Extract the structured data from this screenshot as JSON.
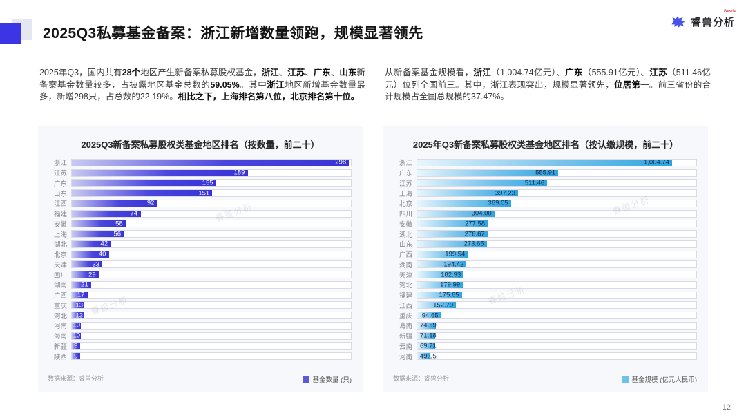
{
  "page": {
    "title": "2025Q3私募基金备案：浙江新增数量领跑，规模显著领先",
    "page_number": "12",
    "watermark": "睿兽分析",
    "logo": {
      "brand": "睿兽分析",
      "brand_en": "Bestla"
    },
    "colors": {
      "accent_blue": "#3b35e6",
      "decor_gray": "#e4e7f0"
    }
  },
  "paragraphs": {
    "left": [
      {
        "t": "2025年Q3，国内共有",
        "b": false
      },
      {
        "t": "28个",
        "b": true
      },
      {
        "t": "地区产生新备案私募股权基金，",
        "b": false
      },
      {
        "t": "浙江",
        "b": true
      },
      {
        "t": "、",
        "b": false
      },
      {
        "t": "江苏",
        "b": true
      },
      {
        "t": "、",
        "b": false
      },
      {
        "t": "广东",
        "b": true
      },
      {
        "t": "、",
        "b": false
      },
      {
        "t": "山东",
        "b": true
      },
      {
        "t": "新备案基金数量较多，占披露地区基金总数的",
        "b": false
      },
      {
        "t": "59.05%",
        "b": true
      },
      {
        "t": "。其中",
        "b": false
      },
      {
        "t": "浙江",
        "b": true
      },
      {
        "t": "地区新增基金数量最多，新增298只，占总数的22.19%。",
        "b": false
      },
      {
        "t": "相比之下，上海排名第八位，北京排名第十位。",
        "b": true
      }
    ],
    "right": [
      {
        "t": "从新备案基金规模看，",
        "b": false
      },
      {
        "t": "浙江",
        "b": true
      },
      {
        "t": "（1,004.74亿元）、",
        "b": false
      },
      {
        "t": "广东",
        "b": true
      },
      {
        "t": "（555.91亿元）、",
        "b": false
      },
      {
        "t": "江苏",
        "b": true
      },
      {
        "t": "（511.46亿元）位列全国前三。其中，浙江表现突出，规模显著领先，",
        "b": false
      },
      {
        "t": "位居第一",
        "b": true
      },
      {
        "t": "。前三省份的合计规模占全国总规模的37.47%。",
        "b": false
      }
    ]
  },
  "chart_data": [
    {
      "type": "bar",
      "orientation": "horizontal",
      "title": "2025Q3新备案私募股权类基金地区排名（按数量，前二十）",
      "categories": [
        "浙江",
        "江苏",
        "广东",
        "山东",
        "江西",
        "福建",
        "安徽",
        "上海",
        "湖北",
        "北京",
        "天津",
        "四川",
        "湖南",
        "广西",
        "重庆",
        "河北",
        "河南",
        "海南",
        "新疆",
        "陕西"
      ],
      "values": [
        298,
        189,
        155,
        151,
        92,
        74,
        58,
        56,
        42,
        40,
        33,
        29,
        21,
        17,
        13,
        13,
        10,
        10,
        9,
        9
      ],
      "value_labels": [
        "298",
        "189",
        "155",
        "151",
        "92",
        "74",
        "58",
        "56",
        "42",
        "40",
        "33",
        "29",
        "21",
        "17",
        "13",
        "13",
        "10",
        "10",
        "9",
        "9"
      ],
      "xlim": [
        0,
        300
      ],
      "grid": false,
      "legend": "基金数量 (只)",
      "legend_position": "bottom-right",
      "source": "数据来源：睿兽分析",
      "bar_gradient": [
        "#c9c9f1",
        "#4a45de",
        "#3833d6"
      ],
      "value_text_color": "#ffffff",
      "legend_swatch_color": "#5b5bd8"
    },
    {
      "type": "bar",
      "orientation": "horizontal",
      "title": "2025年Q3新备案私募股权类基金地区排名（按认缴规模，前二十）",
      "categories": [
        "浙江",
        "广东",
        "江苏",
        "上海",
        "北京",
        "四川",
        "安徽",
        "湖北",
        "山东",
        "广西",
        "湖南",
        "天津",
        "河北",
        "福建",
        "江西",
        "重庆",
        "海南",
        "新疆",
        "云南",
        "河南"
      ],
      "values": [
        1004.74,
        555.91,
        511.46,
        397.23,
        369.05,
        304.0,
        277.58,
        276.67,
        273.65,
        199.54,
        194.42,
        182.93,
        179.99,
        175.65,
        152.79,
        94.65,
        74.59,
        71.18,
        69.71,
        49.05
      ],
      "value_labels": [
        "1,004.74",
        "555.91",
        "511.46",
        "397.23",
        "369.05",
        "304.00",
        "277.58",
        "276.67",
        "273.65",
        "199.54",
        "194.42",
        "182.93",
        "179.99",
        "175.65",
        "152.79",
        "94.65",
        "74.59",
        "71.18",
        "69.71",
        "49.05"
      ],
      "xlim": [
        0,
        1100
      ],
      "grid": false,
      "legend": "基金规模 (亿元人民币)",
      "legend_position": "bottom-right",
      "source": "数据来源：睿兽分析",
      "bar_gradient": [
        "#e8f6fd",
        "#7ac4ec",
        "#2da4e0"
      ],
      "value_text_color": "#14294e",
      "legend_swatch_color": "#6fc0ea"
    }
  ]
}
